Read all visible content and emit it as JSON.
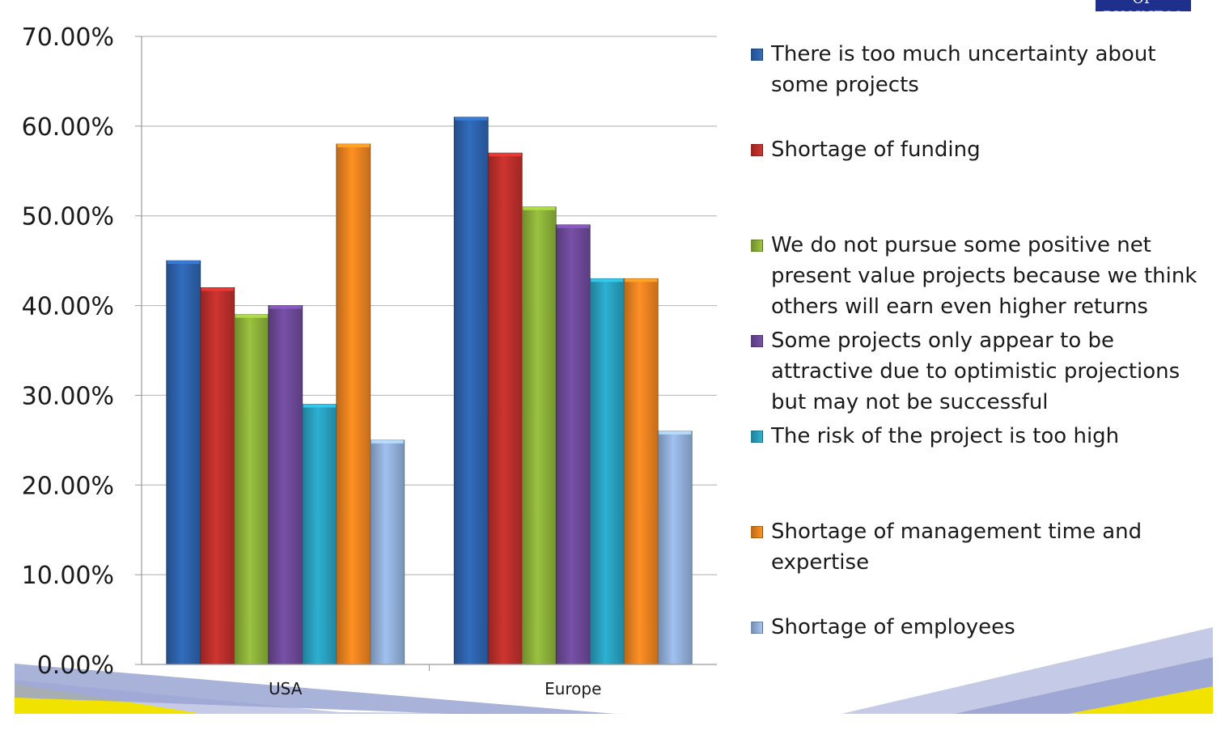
{
  "logo": {
    "text": "OF BUSINESS"
  },
  "chart_data": {
    "type": "bar",
    "title": "",
    "xlabel": "",
    "ylabel": "",
    "ylim": [
      0,
      0.7
    ],
    "y_ticks": [
      {
        "value": 0.0,
        "label": "0.00%"
      },
      {
        "value": 0.1,
        "label": "10.00%"
      },
      {
        "value": 0.2,
        "label": "20.00%"
      },
      {
        "value": 0.3,
        "label": "30.00%"
      },
      {
        "value": 0.4,
        "label": "40.00%"
      },
      {
        "value": 0.5,
        "label": "50.00%"
      },
      {
        "value": 0.6,
        "label": "60.00%"
      },
      {
        "value": 0.7,
        "label": "70.00%"
      }
    ],
    "categories": [
      "USA",
      "Europe"
    ],
    "grid": true,
    "legend_position": "right",
    "series": [
      {
        "name": "There is too much uncertainty about some projects",
        "color": "#2e64b0",
        "values": [
          0.45,
          0.61
        ]
      },
      {
        "name": "Shortage of funding",
        "color": "#c0302c",
        "values": [
          0.42,
          0.57
        ]
      },
      {
        "name": "We do not pursue some positive net present value projects because we think others will earn even higher returns",
        "color": "#8fb43a",
        "values": [
          0.39,
          0.51
        ]
      },
      {
        "name": "Some projects only appear to be attractive due to optimistic projections but may not be successful",
        "color": "#6f4a9c",
        "values": [
          0.4,
          0.49
        ]
      },
      {
        "name": "The risk of the project is too high",
        "color": "#2aa3c2",
        "values": [
          0.29,
          0.43
        ]
      },
      {
        "name": "Shortage of management time and expertise",
        "color": "#ef8520",
        "values": [
          0.58,
          0.43
        ]
      },
      {
        "name": "Shortage of employees",
        "color": "#95b3de",
        "values": [
          0.25,
          0.26
        ]
      }
    ]
  }
}
